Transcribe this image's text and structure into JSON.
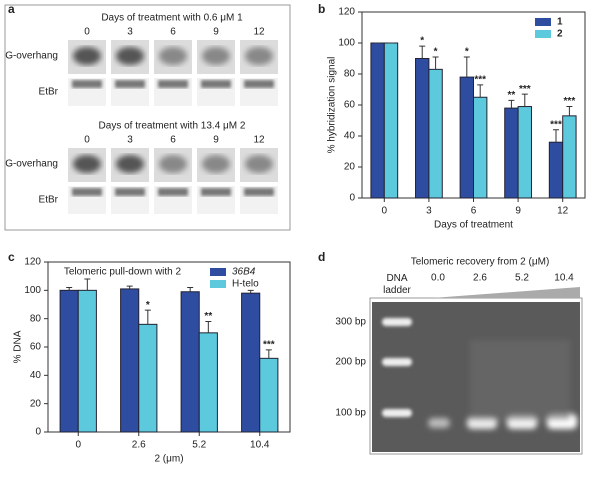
{
  "panel_labels": [
    "a",
    "b",
    "c",
    "d"
  ],
  "panel_a": {
    "blocks": [
      {
        "title": "Days of treatment with 0.6 μM 1",
        "days": [
          "0",
          "3",
          "6",
          "9",
          "12"
        ],
        "rows": [
          "G-overhang",
          "EtBr"
        ]
      },
      {
        "title": "Days of treatment with 13.4 μM 2",
        "days": [
          "0",
          "3",
          "6",
          "9",
          "12"
        ],
        "rows": [
          "G-overhang",
          "EtBr"
        ]
      }
    ]
  },
  "panel_d": {
    "title": "Telomeric recovery  from 2 (μM)",
    "ladder_label": "DNA ladder",
    "lanes": [
      "0.0",
      "2.6",
      "5.2",
      "10.4"
    ],
    "sizes": [
      "300 bp",
      "200 bp",
      "100 bp"
    ]
  },
  "chart_data": [
    {
      "type": "bar",
      "xlabel": "Days of treatment",
      "ylabel": "% hybridization signal",
      "categories": [
        "0",
        "3",
        "6",
        "9",
        "12"
      ],
      "series": [
        {
          "name": "1",
          "color": "#2f4da0",
          "values": [
            100,
            90,
            78,
            58,
            36
          ],
          "errors": [
            0,
            8,
            13,
            5,
            8
          ],
          "annotations": [
            null,
            "*",
            "*",
            "**",
            "***"
          ]
        },
        {
          "name": "2",
          "color": "#5cc9dc",
          "values": [
            100,
            83,
            65,
            59,
            53
          ],
          "errors": [
            0,
            8,
            8,
            8,
            6
          ],
          "annotations": [
            null,
            "*",
            "***",
            "***",
            "***"
          ]
        }
      ],
      "ylim": [
        0,
        120
      ],
      "yticks": [
        0,
        20,
        40,
        60,
        80,
        100,
        120
      ],
      "legend": "upper right"
    },
    {
      "type": "bar",
      "title": "Telomeric pull-down with 2",
      "xlabel": "2 (μm)",
      "ylabel": "% DNA",
      "categories": [
        "0",
        "2.6",
        "5.2",
        "10.4"
      ],
      "series": [
        {
          "name": "36B4",
          "color": "#2f4da0",
          "values": [
            100,
            101,
            99,
            98
          ],
          "errors": [
            2,
            2,
            3,
            2
          ],
          "annotations": [
            null,
            null,
            null,
            null
          ]
        },
        {
          "name": "H-telo",
          "color": "#5cc9dc",
          "values": [
            100,
            76,
            70,
            52
          ],
          "errors": [
            8,
            10,
            8,
            6
          ],
          "annotations": [
            null,
            "*",
            "**",
            "***"
          ]
        }
      ],
      "ylim": [
        0,
        120
      ],
      "yticks": [
        0,
        20,
        40,
        60,
        80,
        100,
        120
      ],
      "legend": "upper right"
    }
  ]
}
